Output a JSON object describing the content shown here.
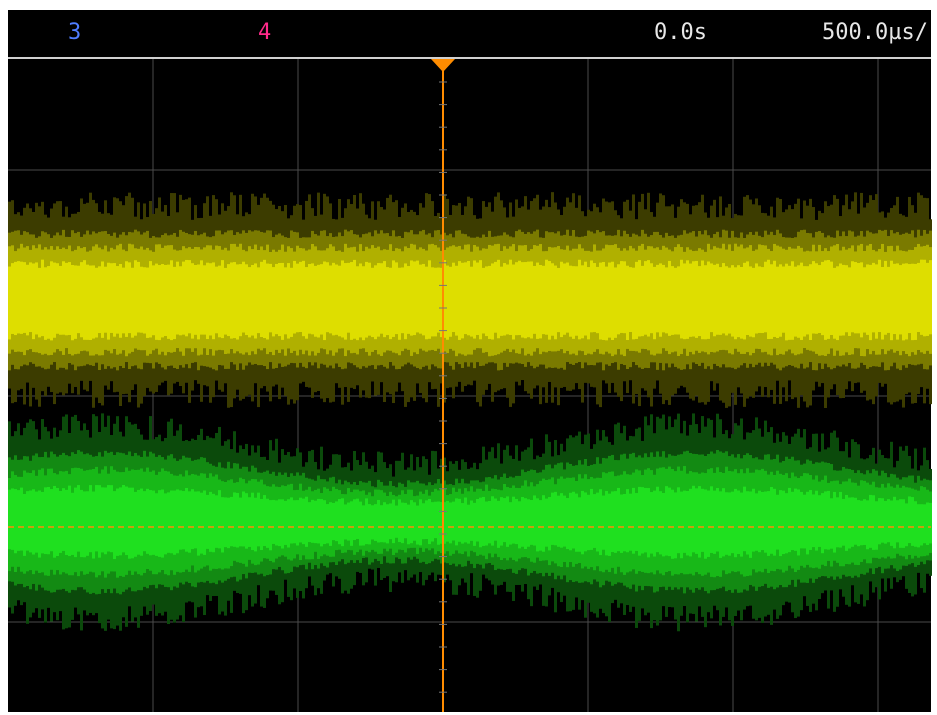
{
  "header": {
    "channel_3": "3",
    "channel_4": "4",
    "time_offset": "0.0s",
    "time_scale": "500.0µs/"
  }
}
